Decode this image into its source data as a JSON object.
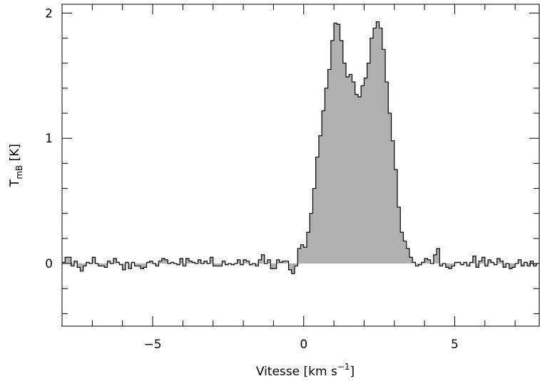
{
  "chart_data": {
    "type": "area",
    "style": "histogram-step",
    "fill_color": "#b0b0b0",
    "line_color": "#000000",
    "xlabel_text": "Vitesse [km s",
    "xlabel_sup": "−1",
    "xlabel_close": "]",
    "ylabel_main": "T",
    "ylabel_sub": "mB",
    "ylabel_unit": " [K]",
    "xlim": [
      -8,
      7.8
    ],
    "ylim": [
      -0.5,
      2.07
    ],
    "x_ticks": [
      -5,
      0,
      5
    ],
    "x_tick_labels": [
      "−5",
      "0",
      "5"
    ],
    "y_ticks": [
      0,
      1,
      2
    ],
    "y_tick_labels": [
      "0",
      "1",
      "2"
    ],
    "channel_width": 0.1,
    "x_start": -8.0,
    "values": [
      0.01,
      0.05,
      0.05,
      -0.02,
      0.02,
      -0.03,
      -0.06,
      -0.02,
      0.01,
      0.0,
      0.05,
      0.0,
      -0.02,
      -0.02,
      -0.03,
      0.02,
      0.0,
      0.04,
      0.01,
      -0.01,
      -0.05,
      0.01,
      -0.04,
      0.01,
      -0.02,
      -0.02,
      -0.04,
      -0.03,
      0.01,
      0.02,
      0.0,
      -0.02,
      0.02,
      0.04,
      0.03,
      0.0,
      0.01,
      0.0,
      -0.01,
      0.04,
      -0.02,
      0.04,
      0.02,
      0.01,
      0.0,
      0.03,
      0.0,
      0.02,
      0.0,
      0.05,
      -0.02,
      -0.02,
      -0.02,
      0.02,
      -0.01,
      0.0,
      -0.01,
      0.0,
      0.03,
      -0.01,
      0.03,
      0.02,
      -0.01,
      0.0,
      -0.02,
      0.03,
      0.07,
      0.0,
      0.03,
      -0.04,
      -0.04,
      0.03,
      0.01,
      0.02,
      0.02,
      -0.05,
      -0.08,
      -0.02,
      0.12,
      0.15,
      0.13,
      0.25,
      0.4,
      0.6,
      0.85,
      1.02,
      1.22,
      1.4,
      1.55,
      1.78,
      1.92,
      1.91,
      1.78,
      1.6,
      1.49,
      1.51,
      1.45,
      1.35,
      1.33,
      1.42,
      1.48,
      1.6,
      1.8,
      1.88,
      1.93,
      1.88,
      1.71,
      1.45,
      1.2,
      0.98,
      0.75,
      0.45,
      0.25,
      0.18,
      0.12,
      0.05,
      0.01,
      -0.02,
      -0.01,
      0.01,
      0.04,
      0.03,
      0.0,
      0.07,
      0.12,
      -0.02,
      0.0,
      -0.03,
      -0.04,
      -0.02,
      0.01,
      0.01,
      -0.01,
      0.01,
      -0.02,
      0.01,
      0.06,
      -0.03,
      0.02,
      0.05,
      -0.02,
      0.03,
      0.01,
      -0.01,
      0.04,
      0.02,
      -0.03,
      0.0,
      -0.04,
      -0.03,
      0.0,
      0.03,
      -0.02,
      0.01,
      -0.02,
      0.02,
      -0.02,
      0.0,
      0.0,
      -0.03,
      0.03,
      -0.02,
      0.0,
      -0.02,
      -0.03,
      0.05,
      -0.01,
      -0.04,
      0.04,
      -0.02,
      0.0,
      -0.02,
      0.02,
      0.03,
      -0.01,
      -0.02,
      -0.05,
      0.04,
      -0.04
    ]
  }
}
